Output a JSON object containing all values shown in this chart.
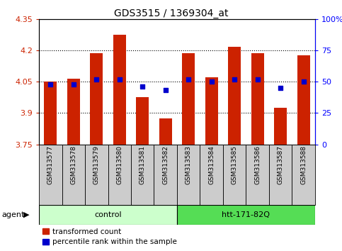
{
  "title": "GDS3515 / 1369304_at",
  "samples": [
    "GSM313577",
    "GSM313578",
    "GSM313579",
    "GSM313580",
    "GSM313581",
    "GSM313582",
    "GSM313583",
    "GSM313584",
    "GSM313585",
    "GSM313586",
    "GSM313587",
    "GSM313588"
  ],
  "bar_values": [
    4.05,
    4.065,
    4.185,
    4.275,
    3.975,
    3.875,
    4.185,
    4.07,
    4.215,
    4.185,
    3.925,
    4.175
  ],
  "percentile_values": [
    48,
    48,
    52,
    52,
    46,
    43,
    52,
    50,
    52,
    52,
    45,
    50
  ],
  "bar_bottom": 3.75,
  "ylim_left": [
    3.75,
    4.35
  ],
  "ylim_right": [
    0,
    100
  ],
  "yticks_left": [
    3.75,
    3.9,
    4.05,
    4.2,
    4.35
  ],
  "yticks_right": [
    0,
    25,
    50,
    75,
    100
  ],
  "ytick_labels_left": [
    "3.75",
    "3.9",
    "4.05",
    "4.2",
    "4.35"
  ],
  "ytick_labels_right": [
    "0",
    "25",
    "50",
    "75",
    "100%"
  ],
  "hlines": [
    3.9,
    4.05,
    4.2
  ],
  "bar_color": "#cc2200",
  "dot_color": "#0000cc",
  "control_label": "control",
  "treatment_label": "htt-171-82Q",
  "agent_label": "agent",
  "legend_bar_label": "transformed count",
  "legend_dot_label": "percentile rank within the sample",
  "control_indices": [
    0,
    1,
    2,
    3,
    4,
    5
  ],
  "treatment_indices": [
    6,
    7,
    8,
    9,
    10,
    11
  ],
  "control_color": "#ccffcc",
  "treatment_color": "#55dd55",
  "xticklabel_area_color": "#cccccc",
  "fig_width": 4.83,
  "fig_height": 3.54,
  "dpi": 100
}
